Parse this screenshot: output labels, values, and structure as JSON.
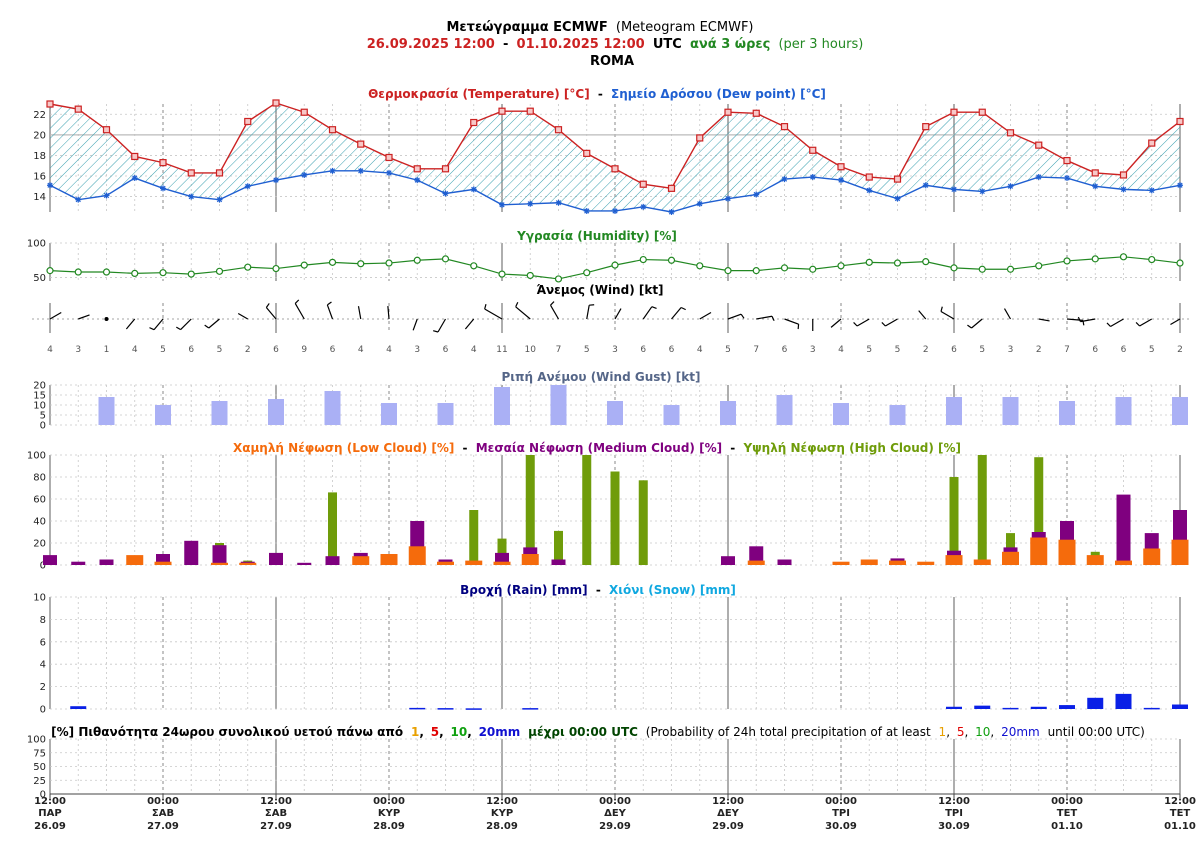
{
  "header": {
    "title_bold": "Μετεώγραμμα ECMWF",
    "title_normal": "(Meteogram ECMWF)",
    "range_from": "26.09.2025 12:00",
    "range_dash": "-",
    "range_to": "01.10.2025 12:00",
    "range_utc": "UTC",
    "range_every": "ανά 3 ώρες",
    "range_every_en": "(per 3 hours)",
    "location": "ROMA"
  },
  "panels": {
    "temp": {
      "t1": "Θερμοκρασία (Temperature) [°C]",
      "sep": "-",
      "t2": "Σημείο Δρόσου (Dew point) [°C]"
    },
    "hum": {
      "t1": "Υγρασία (Humidity) [%]"
    },
    "wind": {
      "t1": "Άνεμος (Wind) [kt]"
    },
    "gust": {
      "t1": "Ριπή Ανέμου (Wind Gust) [kt]"
    },
    "cloud": {
      "t1": "Χαμηλή Νέφωση (Low Cloud) [%]",
      "sep1": "-",
      "t2": "Μεσαία Νέφωση (Medium Cloud) [%]",
      "sep2": "-",
      "t3": "Υψηλή Νέφωση (High Cloud) [%]"
    },
    "precip": {
      "t1": "Βροχή (Rain) [mm]",
      "sep": "-",
      "t2": "Χιόνι (Snow) [mm]"
    },
    "prob": {
      "p1": "[%] Πιθανότητα 24ωρου συνολικού υετού πάνω από",
      "v1": "1",
      "c1": ",",
      "v5": "5",
      "c2": ",",
      "v10": "10",
      "c3": ",",
      "v20": "20mm",
      "p2": "μέχρι 00:00 UTC",
      "p3": "(Probability of 24h total precipitation of at least",
      "e1": "1",
      "ec1": ",",
      "e5": "5",
      "ec2": ",",
      "e10": "10",
      "ec3": ",",
      "e20": "20mm",
      "p4": "until 00:00 UTC)"
    }
  },
  "colors": {
    "temperature": "#cc2222",
    "dewpoint": "#1f5fd1",
    "humidity": "#228822",
    "gust": "#aab0f5",
    "low_cloud": "#f56b0c",
    "medium_cloud": "#7f007f",
    "high_cloud": "#6f9c0a",
    "rain": "#0a20e6",
    "hatch": "#3aa0b0"
  },
  "time_axis": {
    "ticks": [
      {
        "time": "12:00",
        "day": "ΠΑΡ",
        "date": "26.09"
      },
      {
        "time": "00:00",
        "day": "ΣΑΒ",
        "date": "27.09"
      },
      {
        "time": "12:00",
        "day": "ΣΑΒ",
        "date": "27.09"
      },
      {
        "time": "00:00",
        "day": "ΚΥΡ",
        "date": "28.09"
      },
      {
        "time": "12:00",
        "day": "ΚΥΡ",
        "date": "28.09"
      },
      {
        "time": "00:00",
        "day": "ΔΕΥ",
        "date": "29.09"
      },
      {
        "time": "12:00",
        "day": "ΔΕΥ",
        "date": "29.09"
      },
      {
        "time": "00:00",
        "day": "ΤΡΙ",
        "date": "30.09"
      },
      {
        "time": "12:00",
        "day": "ΤΡΙ",
        "date": "30.09"
      },
      {
        "time": "00:00",
        "day": "ΤΕΤ",
        "date": "01.10"
      },
      {
        "time": "12:00",
        "day": "ΤΕΤ",
        "date": "01.10"
      }
    ]
  },
  "chart_data": [
    {
      "type": "line",
      "name": "temperature_dewpoint",
      "x_step_hours": 3,
      "ylim": [
        12.5,
        23
      ],
      "yticks": [
        14,
        16,
        18,
        20,
        22
      ],
      "series": [
        {
          "name": "Θερμοκρασία (Temperature) [°C]",
          "values": [
            23,
            22.5,
            20.5,
            17.9,
            17.3,
            16.3,
            16.3,
            21.3,
            23.1,
            22.2,
            20.5,
            19.1,
            17.8,
            16.7,
            16.7,
            21.2,
            22.3,
            22.3,
            20.5,
            18.2,
            16.7,
            15.2,
            14.8,
            19.7,
            22.2,
            22.1,
            20.8,
            18.5,
            16.9,
            15.9,
            15.7,
            20.8,
            22.2,
            22.2,
            20.2,
            19.0,
            17.5,
            16.3,
            16.1,
            19.2,
            21.3
          ]
        },
        {
          "name": "Σημείο Δρόσου (Dew point) [°C]",
          "values": [
            15.1,
            13.7,
            14.1,
            15.8,
            14.8,
            14.0,
            13.7,
            15.0,
            15.6,
            16.1,
            16.5,
            16.5,
            16.3,
            15.6,
            14.3,
            14.7,
            13.2,
            13.3,
            13.4,
            12.6,
            12.6,
            13.0,
            12.5,
            13.3,
            13.8,
            14.2,
            15.7,
            15.9,
            15.6,
            14.6,
            13.8,
            15.1,
            14.7,
            14.5,
            15.0,
            15.9,
            15.8,
            15.0,
            14.7,
            14.6,
            15.1
          ]
        }
      ]
    },
    {
      "type": "line",
      "name": "humidity",
      "ylim": [
        45,
        100
      ],
      "yticks": [
        50,
        100
      ],
      "series": [
        {
          "name": "Υγρασία (Humidity) [%]",
          "values": [
            60,
            58,
            58,
            56,
            57,
            55,
            59,
            65,
            63,
            68,
            72,
            70,
            71,
            75,
            77,
            67,
            55,
            53,
            48,
            57,
            68,
            76,
            75,
            67,
            60,
            60,
            64,
            62,
            67,
            72,
            71,
            73,
            64,
            62,
            62,
            67,
            74,
            77,
            80,
            76,
            71
          ]
        }
      ]
    },
    {
      "type": "scatter",
      "name": "wind",
      "series": [
        {
          "name": "Άνεμος (Wind) [kt]",
          "values": [
            4,
            3,
            1,
            4,
            5,
            6,
            5,
            2,
            6,
            9,
            6,
            4,
            4,
            3,
            6,
            4,
            11,
            10,
            7,
            5,
            3,
            6,
            6,
            4,
            5,
            7,
            6,
            3,
            4,
            5,
            5,
            2,
            6,
            5,
            3,
            2,
            7,
            6,
            6,
            5,
            2
          ]
        },
        {
          "name": "direction_deg",
          "values": [
            60,
            70,
            0,
            220,
            220,
            225,
            230,
            300,
            320,
            330,
            340,
            350,
            355,
            200,
            210,
            220,
            300,
            310,
            330,
            10,
            30,
            35,
            40,
            60,
            70,
            80,
            110,
            180,
            230,
            240,
            240,
            320,
            300,
            230,
            330,
            100,
            95,
            260,
            240,
            240,
            240
          ]
        }
      ]
    },
    {
      "type": "bar",
      "name": "wind_gust",
      "ylim": [
        0,
        20
      ],
      "yticks": [
        0,
        5,
        10,
        15,
        20
      ],
      "series": [
        {
          "name": "Ριπή Ανέμου (Wind Gust) [kt]",
          "values": [
            14,
            10,
            12,
            13,
            17,
            11,
            11,
            19,
            20,
            12,
            10,
            12,
            15,
            11,
            10,
            14,
            14,
            12,
            14,
            14
          ]
        }
      ]
    },
    {
      "type": "bar",
      "name": "clouds",
      "ylim": [
        0,
        100
      ],
      "yticks": [
        0,
        20,
        40,
        60,
        80,
        100
      ],
      "series": [
        {
          "name": "Χαμηλή Νέφωση (Low Cloud) [%]",
          "values": [
            0,
            0,
            0,
            9,
            3,
            0,
            2,
            2,
            0,
            0,
            0,
            8,
            10,
            17,
            3,
            4,
            3,
            10,
            0,
            0,
            0,
            0,
            0,
            0,
            0,
            4,
            0,
            0,
            3,
            5,
            4,
            3,
            9,
            5,
            12,
            25,
            23,
            9,
            4,
            15,
            23
          ]
        },
        {
          "name": "Μεσαία Νέφωση (Medium Cloud) [%]",
          "values": [
            9,
            3,
            5,
            0,
            10,
            22,
            18,
            3,
            11,
            2,
            8,
            11,
            7,
            40,
            5,
            0,
            11,
            16,
            5,
            0,
            0,
            0,
            0,
            0,
            8,
            17,
            5,
            0,
            0,
            0,
            6,
            0,
            13,
            0,
            16,
            30,
            40,
            0,
            64,
            29,
            50
          ]
        },
        {
          "name": "Υψηλή Νέφωση (High Cloud) [%]",
          "values": [
            0,
            0,
            0,
            0,
            0,
            0,
            20,
            4,
            0,
            0,
            66,
            0,
            0,
            0,
            0,
            50,
            24,
            100,
            31,
            100,
            85,
            77,
            0,
            0,
            0,
            0,
            0,
            0,
            0,
            0,
            0,
            0,
            80,
            100,
            29,
            98,
            0,
            12,
            0,
            0,
            0
          ]
        }
      ]
    },
    {
      "type": "bar",
      "name": "precipitation",
      "ylim": [
        0,
        10
      ],
      "yticks": [
        0,
        2,
        4,
        6,
        8,
        10
      ],
      "series": [
        {
          "name": "Βροχή (Rain) [mm]",
          "values": [
            0,
            0.25,
            0,
            0,
            0,
            0,
            0,
            0,
            0,
            0,
            0,
            0,
            0,
            0.1,
            0.08,
            0.06,
            0,
            0.08,
            0,
            0,
            0,
            0,
            0,
            0,
            0,
            0,
            0,
            0,
            0,
            0,
            0,
            0,
            0.2,
            0.3,
            0.1,
            0.2,
            0.35,
            1.0,
            1.35,
            0.1,
            0.4
          ]
        },
        {
          "name": "Χιόνι (Snow) [mm]",
          "values": []
        }
      ]
    },
    {
      "type": "bar",
      "name": "precip_probability",
      "ylim": [
        0,
        100
      ],
      "yticks": [
        0,
        25,
        50,
        75,
        100
      ],
      "series": []
    }
  ]
}
